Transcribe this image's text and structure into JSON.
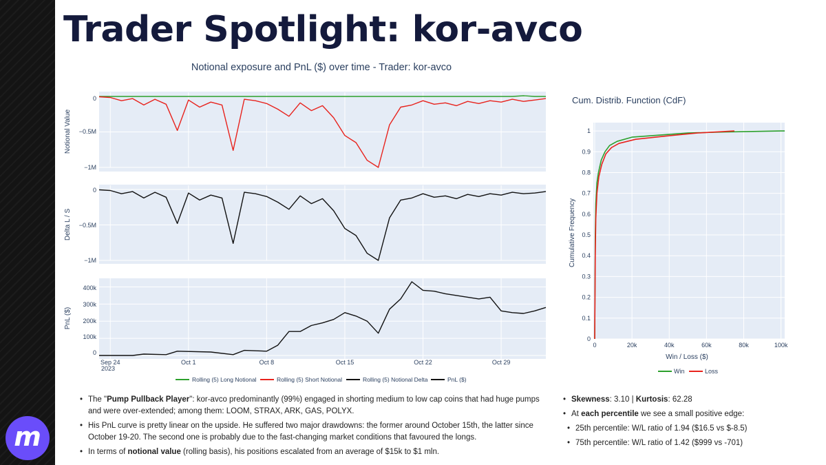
{
  "slide": {
    "title": "Trader Spotlight: kor-avco",
    "logo_letter": "m",
    "accent": "#6a4dfa"
  },
  "chart_data": [
    {
      "type": "line",
      "title": "Notional exposure and PnL ($) over time - Trader: kor-avco",
      "x_range": [
        "2023-09-23",
        "2023-11-02"
      ],
      "x_ticks": [
        "Sep 24",
        "Oct 1",
        "Oct 8",
        "Oct 15",
        "Oct 22",
        "Oct 29"
      ],
      "x_tick_sub": "2023",
      "panels": [
        {
          "ylabel": "Notional Value",
          "yticks": [
            "0",
            "−0.5M",
            "−1M"
          ],
          "ylim": [
            -1000000,
            0
          ],
          "series": [
            {
              "name": "Rolling (5) Long Notional",
              "color": "#2ca02c",
              "points": [
                [
                  "2023-09-23",
                  0
                ],
                [
                  "2023-10-25",
                  0
                ],
                [
                  "2023-10-30",
                  0
                ],
                [
                  "2023-10-31",
                  10000
                ],
                [
                  "2023-11-01",
                  0
                ],
                [
                  "2023-11-02",
                  0
                ]
              ]
            },
            {
              "name": "Rolling (5) Short Notional",
              "color": "#e8221c",
              "points": [
                [
                  "2023-09-23",
                  -5000
                ],
                [
                  "2023-09-24",
                  -15000
                ],
                [
                  "2023-09-25",
                  -60000
                ],
                [
                  "2023-09-26",
                  -30000
                ],
                [
                  "2023-09-27",
                  -120000
                ],
                [
                  "2023-09-28",
                  -40000
                ],
                [
                  "2023-09-29",
                  -110000
                ],
                [
                  "2023-09-30",
                  -480000
                ],
                [
                  "2023-10-01",
                  -50000
                ],
                [
                  "2023-10-02",
                  -150000
                ],
                [
                  "2023-10-03",
                  -80000
                ],
                [
                  "2023-10-04",
                  -120000
                ],
                [
                  "2023-10-05",
                  -760000
                ],
                [
                  "2023-10-06",
                  -40000
                ],
                [
                  "2023-10-07",
                  -60000
                ],
                [
                  "2023-10-08",
                  -100000
                ],
                [
                  "2023-10-09",
                  -180000
                ],
                [
                  "2023-10-10",
                  -280000
                ],
                [
                  "2023-10-11",
                  -90000
                ],
                [
                  "2023-10-12",
                  -200000
                ],
                [
                  "2023-10-13",
                  -130000
                ],
                [
                  "2023-10-14",
                  -300000
                ],
                [
                  "2023-10-15",
                  -550000
                ],
                [
                  "2023-10-16",
                  -650000
                ],
                [
                  "2023-10-17",
                  -900000
                ],
                [
                  "2023-10-18",
                  -1000000
                ],
                [
                  "2023-10-19",
                  -400000
                ],
                [
                  "2023-10-20",
                  -150000
                ],
                [
                  "2023-10-21",
                  -120000
                ],
                [
                  "2023-10-22",
                  -60000
                ],
                [
                  "2023-10-23",
                  -110000
                ],
                [
                  "2023-10-24",
                  -90000
                ],
                [
                  "2023-10-25",
                  -130000
                ],
                [
                  "2023-10-26",
                  -70000
                ],
                [
                  "2023-10-27",
                  -100000
                ],
                [
                  "2023-10-28",
                  -60000
                ],
                [
                  "2023-10-29",
                  -80000
                ],
                [
                  "2023-10-30",
                  -40000
                ],
                [
                  "2023-10-31",
                  -70000
                ],
                [
                  "2023-11-01",
                  -50000
                ],
                [
                  "2023-11-02",
                  -30000
                ]
              ]
            }
          ]
        },
        {
          "ylabel": "Delta L / S",
          "yticks": [
            "0",
            "−0.5M",
            "−1M"
          ],
          "ylim": [
            -1000000,
            0
          ],
          "series": [
            {
              "name": "Rolling (5) Notional Delta",
              "color": "#111111",
              "points": [
                [
                  "2023-09-23",
                  -5000
                ],
                [
                  "2023-09-24",
                  -15000
                ],
                [
                  "2023-09-25",
                  -60000
                ],
                [
                  "2023-09-26",
                  -30000
                ],
                [
                  "2023-09-27",
                  -120000
                ],
                [
                  "2023-09-28",
                  -40000
                ],
                [
                  "2023-09-29",
                  -110000
                ],
                [
                  "2023-09-30",
                  -480000
                ],
                [
                  "2023-10-01",
                  -50000
                ],
                [
                  "2023-10-02",
                  -150000
                ],
                [
                  "2023-10-03",
                  -80000
                ],
                [
                  "2023-10-04",
                  -120000
                ],
                [
                  "2023-10-05",
                  -760000
                ],
                [
                  "2023-10-06",
                  -40000
                ],
                [
                  "2023-10-07",
                  -60000
                ],
                [
                  "2023-10-08",
                  -100000
                ],
                [
                  "2023-10-09",
                  -180000
                ],
                [
                  "2023-10-10",
                  -280000
                ],
                [
                  "2023-10-11",
                  -90000
                ],
                [
                  "2023-10-12",
                  -200000
                ],
                [
                  "2023-10-13",
                  -130000
                ],
                [
                  "2023-10-14",
                  -300000
                ],
                [
                  "2023-10-15",
                  -550000
                ],
                [
                  "2023-10-16",
                  -650000
                ],
                [
                  "2023-10-17",
                  -900000
                ],
                [
                  "2023-10-18",
                  -1000000
                ],
                [
                  "2023-10-19",
                  -400000
                ],
                [
                  "2023-10-20",
                  -150000
                ],
                [
                  "2023-10-21",
                  -120000
                ],
                [
                  "2023-10-22",
                  -60000
                ],
                [
                  "2023-10-23",
                  -110000
                ],
                [
                  "2023-10-24",
                  -90000
                ],
                [
                  "2023-10-25",
                  -130000
                ],
                [
                  "2023-10-26",
                  -70000
                ],
                [
                  "2023-10-27",
                  -100000
                ],
                [
                  "2023-10-28",
                  -60000
                ],
                [
                  "2023-10-29",
                  -80000
                ],
                [
                  "2023-10-30",
                  -40000
                ],
                [
                  "2023-10-31",
                  -60000
                ],
                [
                  "2023-11-01",
                  -50000
                ],
                [
                  "2023-11-02",
                  -30000
                ]
              ]
            }
          ]
        },
        {
          "ylabel": "PnL ($)",
          "yticks": [
            "0",
            "100k",
            "200k",
            "300k",
            "400k"
          ],
          "ylim": [
            -20000,
            450000
          ],
          "series": [
            {
              "name": "PnL ($)",
              "color": "#111111",
              "points": [
                [
                  "2023-09-23",
                  0
                ],
                [
                  "2023-09-26",
                  0
                ],
                [
                  "2023-09-27",
                  8000
                ],
                [
                  "2023-09-29",
                  5000
                ],
                [
                  "2023-09-30",
                  25000
                ],
                [
                  "2023-10-03",
                  20000
                ],
                [
                  "2023-10-05",
                  5000
                ],
                [
                  "2023-10-06",
                  30000
                ],
                [
                  "2023-10-08",
                  25000
                ],
                [
                  "2023-10-09",
                  60000
                ],
                [
                  "2023-10-10",
                  140000
                ],
                [
                  "2023-10-11",
                  140000
                ],
                [
                  "2023-10-12",
                  175000
                ],
                [
                  "2023-10-13",
                  190000
                ],
                [
                  "2023-10-14",
                  210000
                ],
                [
                  "2023-10-15",
                  250000
                ],
                [
                  "2023-10-16",
                  230000
                ],
                [
                  "2023-10-17",
                  200000
                ],
                [
                  "2023-10-18",
                  130000
                ],
                [
                  "2023-10-19",
                  270000
                ],
                [
                  "2023-10-20",
                  330000
                ],
                [
                  "2023-10-21",
                  430000
                ],
                [
                  "2023-10-22",
                  380000
                ],
                [
                  "2023-10-23",
                  375000
                ],
                [
                  "2023-10-24",
                  360000
                ],
                [
                  "2023-10-25",
                  350000
                ],
                [
                  "2023-10-26",
                  340000
                ],
                [
                  "2023-10-27",
                  330000
                ],
                [
                  "2023-10-28",
                  340000
                ],
                [
                  "2023-10-29",
                  260000
                ],
                [
                  "2023-10-30",
                  250000
                ],
                [
                  "2023-10-31",
                  245000
                ],
                [
                  "2023-11-01",
                  260000
                ],
                [
                  "2023-11-02",
                  280000
                ]
              ]
            }
          ]
        }
      ],
      "legend": [
        "Rolling (5) Long Notional",
        "Rolling (5) Short Notional",
        "Rolling (5) Notional Delta",
        "PnL ($)"
      ],
      "legend_colors": [
        "#2ca02c",
        "#e8221c",
        "#111111",
        "#111111"
      ],
      "grid": true,
      "legend_position": "bottom"
    },
    {
      "type": "line",
      "title": "Cum. Distrib. Function (CdF)",
      "xlabel": "Win / Loss ($)",
      "ylabel": "Cumulative Frequency",
      "xlim": [
        0,
        102000
      ],
      "ylim": [
        0,
        1.04
      ],
      "x_ticks": [
        "0",
        "20k",
        "40k",
        "60k",
        "80k",
        "100k"
      ],
      "y_ticks": [
        "0",
        "0.1",
        "0.2",
        "0.3",
        "0.4",
        "0.5",
        "0.6",
        "0.7",
        "0.8",
        "0.9",
        "1"
      ],
      "series": [
        {
          "name": "Win",
          "color": "#2ca02c",
          "points": [
            [
              0,
              0
            ],
            [
              300,
              0.5
            ],
            [
              600,
              0.65
            ],
            [
              1200,
              0.75
            ],
            [
              2000,
              0.8
            ],
            [
              3500,
              0.86
            ],
            [
              5500,
              0.9
            ],
            [
              8000,
              0.93
            ],
            [
              12000,
              0.95
            ],
            [
              20000,
              0.97
            ],
            [
              35000,
              0.98
            ],
            [
              50000,
              0.99
            ],
            [
              70000,
              0.995
            ],
            [
              100000,
              1.0
            ],
            [
              102000,
              1.0
            ]
          ]
        },
        {
          "name": "Loss",
          "color": "#e8221c",
          "points": [
            [
              0,
              0
            ],
            [
              300,
              0.4
            ],
            [
              600,
              0.58
            ],
            [
              1200,
              0.7
            ],
            [
              2200,
              0.78
            ],
            [
              3800,
              0.84
            ],
            [
              6000,
              0.89
            ],
            [
              9000,
              0.92
            ],
            [
              13000,
              0.94
            ],
            [
              22000,
              0.96
            ],
            [
              38000,
              0.975
            ],
            [
              55000,
              0.99
            ],
            [
              75000,
              1.0
            ]
          ]
        }
      ],
      "legend": [
        "Win",
        "Loss"
      ],
      "grid": true,
      "legend_position": "bottom"
    }
  ],
  "bullets_left": [
    {
      "pre": "The \"",
      "bold": "Pump Pullback Player",
      "post": "\": kor-avco predominantly (99%) engaged in shorting medium to low cap coins that had huge pumps and were over-extended; among them: LOOM, STRAX, ARK, GAS, POLYX."
    },
    {
      "pre": "His PnL curve is pretty linear on the upside. He suffered two major drawdowns: the former around October 15th, the latter since October 19-20. The second one is probably due to the fast-changing market conditions that favoured the longs.",
      "bold": "",
      "post": ""
    },
    {
      "pre": "In terms of ",
      "bold": "notional value",
      "post": " (rolling basis), his positions escalated from an average of $15k to $1 mln."
    }
  ],
  "bullets_right": [
    {
      "b1": "Skewness",
      "t1": ": 3.10 | ",
      "b2": "Kurtosis",
      "t2": ": 62.28"
    },
    {
      "t0": "At ",
      "b1": "each percentile",
      "t1": " we see a small positive edge:"
    },
    {
      "t0": "25th percentile: W/L ratio of 1.94 ($16.5 vs $-8.5)"
    },
    {
      "t0": "75th percentile: W/L ratio of 1.42 ($999 vs -701)"
    }
  ]
}
